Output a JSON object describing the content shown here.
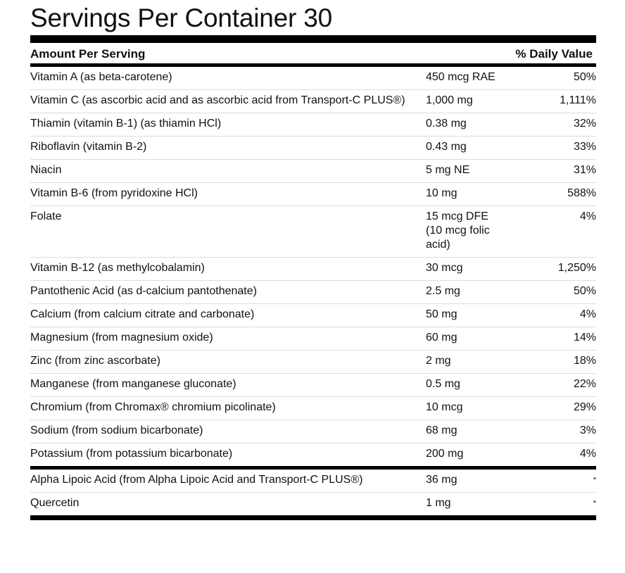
{
  "title": "Servings Per Container 30",
  "header": {
    "amount": "Amount Per Serving",
    "daily_value": "% Daily Value"
  },
  "nutrients": [
    {
      "name": "Vitamin A (as beta-carotene)",
      "amount": "450 mcg RAE",
      "dv": "50%"
    },
    {
      "name": "Vitamin C (as ascorbic acid and as ascorbic acid from Transport-C PLUS®)",
      "amount": "1,000 mg",
      "dv": "1,111%"
    },
    {
      "name": "Thiamin (vitamin B-1) (as thiamin HCl)",
      "amount": "0.38 mg",
      "dv": "32%"
    },
    {
      "name": "Riboflavin (vitamin B-2)",
      "amount": "0.43 mg",
      "dv": "33%"
    },
    {
      "name": "Niacin",
      "amount": "5 mg NE",
      "dv": "31%"
    },
    {
      "name": "Vitamin B-6 (from pyridoxine HCl)",
      "amount": "10 mg",
      "dv": "588%"
    },
    {
      "name": "Folate",
      "amount": "15 mcg DFE (10 mcg folic acid)",
      "dv": "4%"
    },
    {
      "name": "Vitamin B-12 (as methylcobalamin)",
      "amount": "30 mcg",
      "dv": "1,250%"
    },
    {
      "name": "Pantothenic Acid (as d-calcium pantothenate)",
      "amount": "2.5 mg",
      "dv": "50%"
    },
    {
      "name": "Calcium (from calcium citrate and carbonate)",
      "amount": "50 mg",
      "dv": "4%"
    },
    {
      "name": "Magnesium (from magnesium oxide)",
      "amount": "60 mg",
      "dv": "14%"
    },
    {
      "name": "Zinc (from zinc ascorbate)",
      "amount": "2 mg",
      "dv": "18%"
    },
    {
      "name": "Manganese (from manganese gluconate)",
      "amount": "0.5 mg",
      "dv": "22%"
    },
    {
      "name": "Chromium (from Chromax® chromium picolinate)",
      "amount": "10 mcg",
      "dv": "29%"
    },
    {
      "name": "Sodium (from sodium bicarbonate)",
      "amount": "68 mg",
      "dv": "3%"
    },
    {
      "name": "Potassium (from potassium bicarbonate)",
      "amount": "200 mg",
      "dv": "4%"
    }
  ],
  "other": [
    {
      "name": "Alpha Lipoic Acid (from Alpha Lipoic Acid and Transport-C PLUS®)",
      "amount": "36 mg",
      "dv": "*"
    },
    {
      "name": "Quercetin",
      "amount": "1 mg",
      "dv": "*"
    }
  ]
}
